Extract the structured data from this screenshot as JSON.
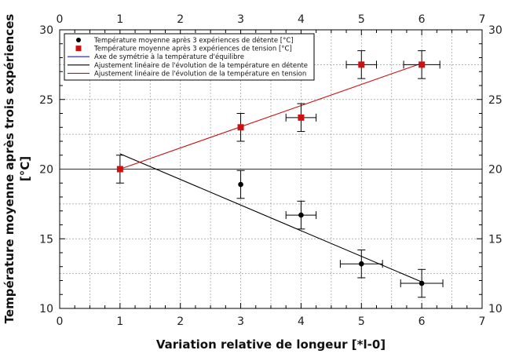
{
  "chart_data": {
    "type": "scatter",
    "xlabel": "Variation relative de longeur [*l-0]",
    "ylabel_lines": [
      "Température moyenne après trois expériences",
      "[°C]"
    ],
    "xlim": [
      0,
      7
    ],
    "ylim": [
      10,
      30
    ],
    "x_ticks": [
      0,
      1,
      2,
      3,
      4,
      5,
      6,
      7
    ],
    "y_ticks": [
      10,
      15,
      20,
      25,
      30
    ],
    "grid": true,
    "mirror_axes": true,
    "legend_position": "top-left",
    "series": [
      {
        "name": "Température moyenne après 3 expériences de détente [°C]",
        "kind": "points",
        "marker": "circle",
        "color": "#000000",
        "x": [
          3,
          4,
          5,
          6
        ],
        "y": [
          18.9,
          16.7,
          13.2,
          11.8
        ],
        "x_err": [
          0,
          0.25,
          0.35,
          0.35
        ],
        "y_err": [
          1.0,
          1.0,
          1.0,
          1.0
        ]
      },
      {
        "name": "Température moyenne après 3 expériences de tension [°C]",
        "kind": "points",
        "marker": "square",
        "color": "#cc1111",
        "x": [
          1,
          3,
          4,
          5,
          6
        ],
        "y": [
          20.0,
          23.0,
          23.7,
          27.5,
          27.5
        ],
        "x_err": [
          0,
          0,
          0.25,
          0.25,
          0.3
        ],
        "y_err": [
          1.0,
          1.0,
          1.0,
          1.0,
          1.0
        ]
      },
      {
        "name": "Axe de symétrie à la température d'équilibre",
        "kind": "line",
        "color": "#1a1acc",
        "x": [
          0,
          7
        ],
        "y": [
          20,
          20
        ]
      },
      {
        "name": "Ajustement linéaire de l'évolution de la température en détente",
        "kind": "line",
        "color": "#000000",
        "x": [
          1,
          6
        ],
        "y": [
          21.1,
          11.9
        ]
      },
      {
        "name": "Ajustement linéaire de l'évolution de la température en tension",
        "kind": "line",
        "color": "#cc1111",
        "x": [
          1,
          6
        ],
        "y": [
          20.0,
          27.6
        ]
      }
    ]
  }
}
